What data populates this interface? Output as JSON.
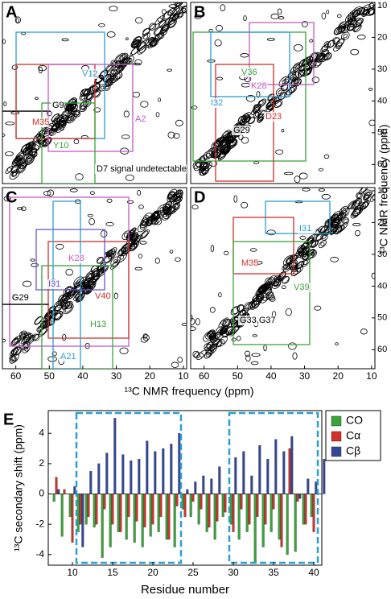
{
  "spectra": {
    "xlabel": "¹³C NMR frequency (ppm)",
    "ylabel": "¹³C NMR frequency (ppm)",
    "xlim": [
      64,
      9
    ],
    "ylim": [
      9,
      66
    ],
    "xticks": [
      60,
      50,
      40,
      30,
      20,
      10
    ],
    "yticks": [
      10,
      20,
      30,
      40,
      50,
      60
    ],
    "panels": [
      {
        "letter": "A",
        "assignments": [
          {
            "label": "V12",
            "color": "#2a9fd6"
          },
          {
            "label": "G9",
            "color": "#000000"
          },
          {
            "label": "M35",
            "color": "#d3302b"
          },
          {
            "label": "A2",
            "color": "#c25bc2"
          },
          {
            "label": "Y10",
            "color": "#3aa53a"
          },
          {
            "label": "D7 signal undetectable",
            "color": "#000000"
          }
        ]
      },
      {
        "letter": "B",
        "assignments": [
          {
            "label": "V36",
            "color": "#3aa53a"
          },
          {
            "label": "K28",
            "color": "#c25bc2"
          },
          {
            "label": "I32",
            "color": "#2a9fd6"
          },
          {
            "label": "D23",
            "color": "#d3302b"
          },
          {
            "label": "G29",
            "color": "#000000"
          }
        ]
      },
      {
        "letter": "C",
        "assignments": [
          {
            "label": "K28",
            "color": "#c25bc2"
          },
          {
            "label": "I31",
            "color": "#6a5acd"
          },
          {
            "label": "V40",
            "color": "#d3302b"
          },
          {
            "label": "G29",
            "color": "#000000"
          },
          {
            "label": "H13",
            "color": "#3aa53a"
          },
          {
            "label": "A21",
            "color": "#2a9fd6"
          }
        ]
      },
      {
        "letter": "D",
        "assignments": [
          {
            "label": "I31",
            "color": "#2a9fd6"
          },
          {
            "label": "M35",
            "color": "#d3302b"
          },
          {
            "label": "V39",
            "color": "#3aa53a"
          },
          {
            "label": "G33,G37",
            "color": "#000000"
          }
        ]
      }
    ]
  },
  "chart_data": {
    "type": "bar",
    "panel_letter": "E",
    "xlabel": "Residue number",
    "ylabel": "¹³C secondary shift (ppm)",
    "x": [
      8,
      9,
      10,
      11,
      12,
      13,
      14,
      15,
      16,
      17,
      18,
      19,
      20,
      21,
      22,
      23,
      24,
      25,
      26,
      27,
      28,
      29,
      30,
      31,
      32,
      33,
      34,
      35,
      36,
      37,
      38,
      39,
      40,
      41
    ],
    "xlim": [
      7,
      41
    ],
    "xticks": [
      10,
      15,
      20,
      25,
      30,
      35,
      40
    ],
    "ylim": [
      -4.7,
      5.5
    ],
    "yticks": [
      -4,
      -2,
      0,
      2,
      4
    ],
    "legend": "right",
    "highlight_ranges": [
      [
        11,
        23
      ],
      [
        30,
        40
      ]
    ],
    "highlight_color": "#2a9fd6",
    "series": [
      {
        "name": "CO",
        "color": "#3aa53a",
        "values": [
          -0.5,
          -2.8,
          -1.5,
          -2.5,
          -2.0,
          -2.2,
          -4.2,
          -3.5,
          -2.5,
          -3.0,
          -3.2,
          -3.5,
          -2.8,
          -2.5,
          -3.0,
          -3.5,
          -1.0,
          -1.5,
          -2.0,
          -2.5,
          -3.0,
          -1.5,
          -2.0,
          -3.0,
          -2.5,
          -4.5,
          -3.5,
          -2.5,
          -3.0,
          -4.0,
          -3.8,
          -2.0,
          -1.5,
          null
        ]
      },
      {
        "name": "Cα",
        "color": "#d3302b",
        "values": [
          1.1,
          0.3,
          -3.2,
          -2.0,
          -1.5,
          -2.0,
          -1.0,
          -2.0,
          -2.5,
          -1.5,
          -1.8,
          -2.2,
          -2.0,
          -1.5,
          -3.0,
          -0.8,
          -1.5,
          -0.5,
          -1.0,
          -2.2,
          -1.8,
          -1.2,
          -2.5,
          -1.0,
          -2.0,
          -1.5,
          -2.0,
          -1.0,
          -3.5,
          3.0,
          -0.5,
          -2.0,
          -2.5,
          null
        ]
      },
      {
        "name": "Cβ",
        "color": "#33479a",
        "values": [
          0.3,
          null,
          0.5,
          -3.5,
          1.5,
          2.0,
          2.7,
          5.0,
          2.6,
          2.2,
          2.3,
          3.5,
          2.8,
          3.0,
          3.3,
          4.0,
          0.3,
          0.8,
          1.2,
          1.0,
          1.8,
          null,
          2.4,
          2.8,
          1.2,
          3.2,
          2.3,
          3.6,
          2.8,
          3.8,
          -0.3,
          1.0,
          0.8,
          2.3
        ]
      }
    ]
  }
}
